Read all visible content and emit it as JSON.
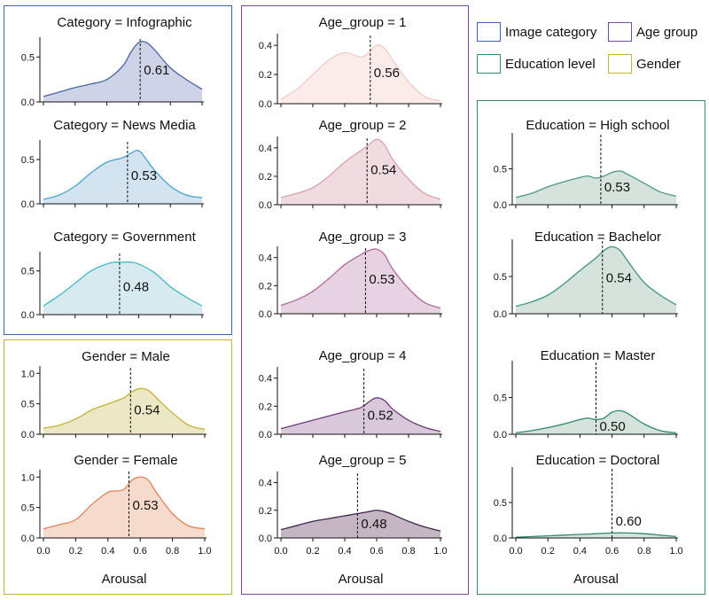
{
  "legend": [
    {
      "key": "category",
      "label": "Image category",
      "color": "#3a66ad"
    },
    {
      "key": "age",
      "label": "Age group",
      "color": "#7a4a97"
    },
    {
      "key": "education",
      "label": "Education level",
      "color": "#3a8a72"
    },
    {
      "key": "gender",
      "label": "Gender",
      "color": "#c7b336"
    }
  ],
  "chart_data": [
    {
      "id": "category-infographic",
      "type": "area",
      "group": "category",
      "title": "Category = Infographic",
      "yticks": [
        0.0,
        0.5
      ],
      "ylim": [
        0,
        0.72
      ],
      "mean": 0.61,
      "mean_label": "0.61",
      "fill": "#cfd3e8",
      "stroke": "#4a63a8",
      "x": [
        0.0,
        0.1,
        0.2,
        0.3,
        0.4,
        0.5,
        0.55,
        0.6,
        0.65,
        0.7,
        0.8,
        0.9,
        1.0
      ],
      "y": [
        0.06,
        0.11,
        0.16,
        0.2,
        0.25,
        0.4,
        0.55,
        0.66,
        0.66,
        0.58,
        0.38,
        0.25,
        0.14
      ]
    },
    {
      "id": "category-news-media",
      "type": "area",
      "group": "category",
      "title": "Category = News Media",
      "yticks": [
        0.0,
        0.5
      ],
      "ylim": [
        0,
        0.72
      ],
      "mean": 0.53,
      "mean_label": "0.53",
      "fill": "#d3e3ef",
      "stroke": "#4aa3cf",
      "x": [
        0.0,
        0.1,
        0.2,
        0.3,
        0.4,
        0.5,
        0.55,
        0.6,
        0.65,
        0.7,
        0.8,
        0.9,
        1.0
      ],
      "y": [
        0.05,
        0.1,
        0.2,
        0.35,
        0.47,
        0.52,
        0.57,
        0.6,
        0.5,
        0.38,
        0.2,
        0.1,
        0.07
      ]
    },
    {
      "id": "category-government",
      "type": "area",
      "group": "category",
      "title": "Category = Government",
      "yticks": [
        0.0,
        0.5
      ],
      "ylim": [
        0,
        0.72
      ],
      "mean": 0.48,
      "mean_label": "0.48",
      "fill": "#d6eaef",
      "stroke": "#48b6c9",
      "x": [
        0.0,
        0.1,
        0.2,
        0.3,
        0.4,
        0.45,
        0.5,
        0.55,
        0.6,
        0.7,
        0.8,
        0.9,
        1.0
      ],
      "y": [
        0.1,
        0.22,
        0.36,
        0.5,
        0.58,
        0.6,
        0.6,
        0.6,
        0.58,
        0.48,
        0.32,
        0.2,
        0.1
      ]
    },
    {
      "id": "gender-male",
      "type": "area",
      "group": "gender",
      "title": "Gender = Male",
      "yticks": [
        0.0,
        0.5,
        1.0
      ],
      "ylim": [
        0,
        1.12
      ],
      "mean": 0.54,
      "mean_label": "0.54",
      "fill": "#ece7c4",
      "stroke": "#c2b23a",
      "x": [
        0.0,
        0.1,
        0.2,
        0.3,
        0.4,
        0.5,
        0.55,
        0.6,
        0.65,
        0.7,
        0.8,
        0.9,
        1.0
      ],
      "y": [
        0.1,
        0.15,
        0.25,
        0.4,
        0.5,
        0.6,
        0.7,
        0.75,
        0.72,
        0.6,
        0.35,
        0.15,
        0.08
      ]
    },
    {
      "id": "gender-female",
      "type": "area",
      "group": "gender",
      "title": "Gender = Female",
      "yticks": [
        0.0,
        0.5,
        1.0
      ],
      "ylim": [
        0,
        1.12
      ],
      "mean": 0.53,
      "mean_label": "0.53",
      "fill": "#f6dacb",
      "stroke": "#e3845a",
      "x": [
        0.0,
        0.1,
        0.2,
        0.3,
        0.4,
        0.45,
        0.5,
        0.55,
        0.6,
        0.65,
        0.7,
        0.8,
        0.9,
        1.0
      ],
      "y": [
        0.15,
        0.22,
        0.3,
        0.55,
        0.75,
        0.77,
        0.8,
        0.95,
        1.0,
        0.95,
        0.75,
        0.4,
        0.2,
        0.15
      ]
    },
    {
      "id": "age-1",
      "type": "area",
      "group": "age",
      "title": "Age_group = 1",
      "yticks": [
        0.0,
        0.2,
        0.4
      ],
      "ylim": [
        0,
        0.48
      ],
      "mean": 0.56,
      "mean_label": "0.56",
      "fill": "#fbecea",
      "stroke": "#f2c9cb",
      "x": [
        0.0,
        0.1,
        0.2,
        0.3,
        0.4,
        0.5,
        0.55,
        0.6,
        0.65,
        0.7,
        0.8,
        0.9,
        1.0
      ],
      "y": [
        0.03,
        0.1,
        0.2,
        0.3,
        0.35,
        0.32,
        0.35,
        0.4,
        0.38,
        0.3,
        0.15,
        0.05,
        0.02
      ]
    },
    {
      "id": "age-2",
      "type": "area",
      "group": "age",
      "title": "Age_group = 2",
      "yticks": [
        0.0,
        0.2,
        0.4
      ],
      "ylim": [
        0,
        0.48
      ],
      "mean": 0.54,
      "mean_label": "0.54",
      "fill": "#f0dce0",
      "stroke": "#d9a1ac",
      "x": [
        0.0,
        0.1,
        0.2,
        0.3,
        0.4,
        0.5,
        0.55,
        0.6,
        0.65,
        0.7,
        0.8,
        0.9,
        1.0
      ],
      "y": [
        0.05,
        0.08,
        0.12,
        0.2,
        0.3,
        0.38,
        0.42,
        0.46,
        0.42,
        0.32,
        0.18,
        0.08,
        0.04
      ]
    },
    {
      "id": "age-3",
      "type": "area",
      "group": "age",
      "title": "Age_group = 3",
      "yticks": [
        0.0,
        0.2,
        0.4
      ],
      "ylim": [
        0,
        0.48
      ],
      "mean": 0.53,
      "mean_label": "0.53",
      "fill": "#e6d2e0",
      "stroke": "#b26a9a",
      "x": [
        0.0,
        0.1,
        0.2,
        0.3,
        0.4,
        0.5,
        0.55,
        0.6,
        0.65,
        0.7,
        0.8,
        0.9,
        1.0
      ],
      "y": [
        0.06,
        0.1,
        0.16,
        0.25,
        0.35,
        0.42,
        0.45,
        0.46,
        0.42,
        0.32,
        0.18,
        0.08,
        0.04
      ]
    },
    {
      "id": "age-4",
      "type": "area",
      "group": "age",
      "title": "Age_group = 4",
      "yticks": [
        0.0,
        0.2,
        0.4
      ],
      "ylim": [
        0,
        0.48
      ],
      "mean": 0.52,
      "mean_label": "0.52",
      "fill": "#d9c8d9",
      "stroke": "#6e3c7b",
      "x": [
        0.0,
        0.1,
        0.2,
        0.3,
        0.4,
        0.5,
        0.55,
        0.6,
        0.65,
        0.7,
        0.8,
        0.9,
        1.0
      ],
      "y": [
        0.04,
        0.07,
        0.1,
        0.13,
        0.16,
        0.19,
        0.23,
        0.26,
        0.24,
        0.18,
        0.1,
        0.05,
        0.02
      ]
    },
    {
      "id": "age-5",
      "type": "area",
      "group": "age",
      "title": "Age_group = 5",
      "yticks": [
        0.0,
        0.2,
        0.4
      ],
      "ylim": [
        0,
        0.48
      ],
      "mean": 0.48,
      "mean_label": "0.48",
      "fill": "#c6b6c4",
      "stroke": "#3a2650",
      "x": [
        0.0,
        0.1,
        0.2,
        0.3,
        0.4,
        0.5,
        0.55,
        0.6,
        0.65,
        0.7,
        0.8,
        0.9,
        1.0
      ],
      "y": [
        0.06,
        0.09,
        0.12,
        0.14,
        0.16,
        0.18,
        0.19,
        0.2,
        0.19,
        0.17,
        0.12,
        0.08,
        0.05
      ]
    },
    {
      "id": "education-high-school",
      "type": "area",
      "group": "education",
      "title": "Education = High school",
      "yticks": [
        0.0,
        0.5
      ],
      "ylim": [
        0,
        1.0
      ],
      "mean": 0.53,
      "mean_label": "0.53",
      "fill": "#d6e3dc",
      "stroke": "#4a9a7e",
      "x": [
        0.0,
        0.1,
        0.2,
        0.3,
        0.4,
        0.45,
        0.5,
        0.55,
        0.6,
        0.65,
        0.7,
        0.8,
        0.9,
        1.0
      ],
      "y": [
        0.1,
        0.16,
        0.25,
        0.32,
        0.38,
        0.4,
        0.37,
        0.4,
        0.45,
        0.47,
        0.42,
        0.3,
        0.18,
        0.12
      ]
    },
    {
      "id": "education-bachelor",
      "type": "area",
      "group": "education",
      "title": "Education = Bachelor",
      "yticks": [
        0.0,
        0.5
      ],
      "ylim": [
        0,
        1.0
      ],
      "mean": 0.54,
      "mean_label": "0.54",
      "fill": "#d6e3dc",
      "stroke": "#3f9478",
      "x": [
        0.0,
        0.1,
        0.2,
        0.3,
        0.4,
        0.5,
        0.55,
        0.6,
        0.65,
        0.7,
        0.8,
        0.9,
        1.0
      ],
      "y": [
        0.1,
        0.16,
        0.25,
        0.4,
        0.58,
        0.75,
        0.85,
        0.9,
        0.85,
        0.7,
        0.42,
        0.25,
        0.12
      ]
    },
    {
      "id": "education-master",
      "type": "area",
      "group": "education",
      "title": "Education = Master",
      "yticks": [
        0.0,
        0.5
      ],
      "ylim": [
        0,
        1.0
      ],
      "mean": 0.5,
      "mean_label": "0.50",
      "fill": "#d6e3dc",
      "stroke": "#2f8a6d",
      "x": [
        0.0,
        0.1,
        0.2,
        0.3,
        0.4,
        0.45,
        0.5,
        0.55,
        0.6,
        0.65,
        0.7,
        0.8,
        0.9,
        1.0
      ],
      "y": [
        0.02,
        0.05,
        0.09,
        0.14,
        0.2,
        0.22,
        0.2,
        0.22,
        0.3,
        0.32,
        0.28,
        0.14,
        0.05,
        0.02
      ]
    },
    {
      "id": "education-doctoral",
      "type": "area",
      "group": "education",
      "title": "Education = Doctoral",
      "yticks": [
        0.0,
        0.5
      ],
      "ylim": [
        0,
        1.0
      ],
      "mean": 0.6,
      "mean_label": "0.60",
      "fill": "#d6e3dc",
      "stroke": "#2f8a6d",
      "x": [
        0.0,
        0.1,
        0.2,
        0.3,
        0.4,
        0.5,
        0.6,
        0.7,
        0.8,
        0.9,
        1.0
      ],
      "y": [
        0.01,
        0.02,
        0.03,
        0.04,
        0.05,
        0.06,
        0.07,
        0.07,
        0.06,
        0.04,
        0.02
      ]
    }
  ],
  "x_axis": {
    "label": "Arousal",
    "ticks": [
      0.0,
      0.2,
      0.4,
      0.6,
      0.8,
      1.0
    ],
    "tick_labels": [
      "0.0",
      "0.2",
      "0.4",
      "0.6",
      "0.8",
      "1.0"
    ],
    "xlim": [
      0.0,
      1.0
    ]
  }
}
